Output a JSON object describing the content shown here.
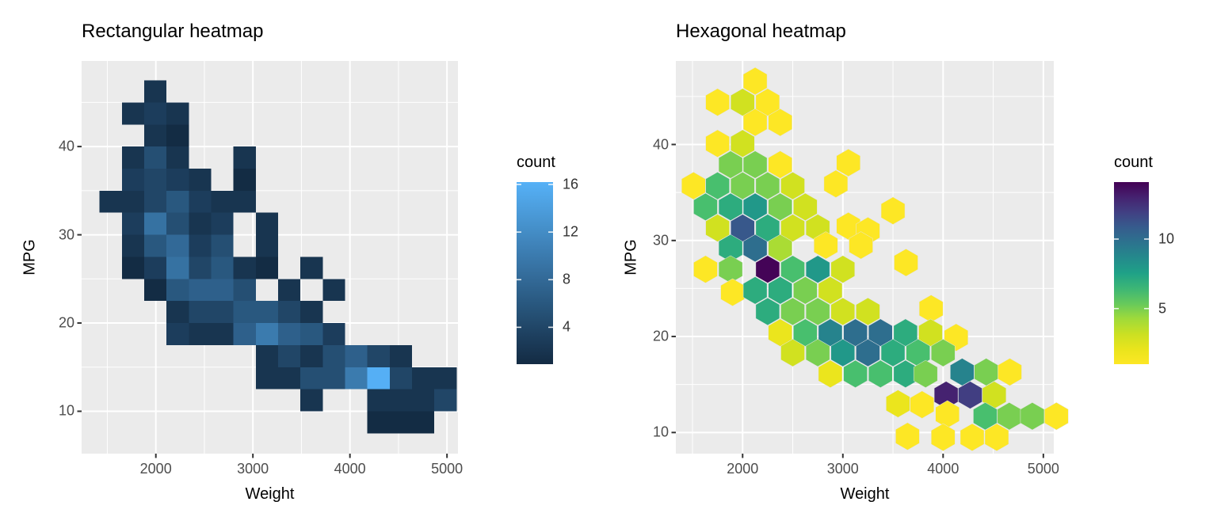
{
  "page": {
    "background": "#FFFFFF",
    "panel_background": "#EBEBEB",
    "gridline_color": "#FFFFFF",
    "tick_label_color": "#4D4D4D",
    "text_color": "#000000"
  },
  "charts": [
    {
      "id": "rect-heatmap",
      "title": "Rectangular heatmap",
      "xlabel": "Weight",
      "ylabel": "MPG",
      "x_ticks": [
        2000,
        3000,
        4000,
        5000
      ],
      "x_minor_ticks": [
        1500,
        2500,
        3500,
        4500
      ],
      "y_ticks": [
        10,
        20,
        30,
        40
      ],
      "y_minor_ticks": [
        15,
        25,
        35,
        45
      ],
      "x_domain": [
        1235,
        5113
      ],
      "y_domain": [
        5.2,
        49.7
      ],
      "legend": {
        "title": "count",
        "ticks": [
          16,
          12,
          8,
          4
        ],
        "domain": [
          0.9,
          16.2
        ],
        "low_color": "#132B43",
        "high_color": "#56B1F7"
      },
      "chart_data": {
        "type": "heatmap",
        "note": "2D binned counts of MPG vs Weight; bin = 230 lb x 2.5 MPG; cells = [weight_center, mpg_center, count]",
        "bin_width": 230,
        "bin_height": 2.5,
        "cells": [
          [
            1995,
            46.25,
            2
          ],
          [
            1765,
            43.75,
            2
          ],
          [
            1995,
            43.75,
            3
          ],
          [
            2225,
            43.75,
            2
          ],
          [
            1995,
            41.25,
            2
          ],
          [
            2225,
            41.25,
            1
          ],
          [
            1765,
            38.75,
            2
          ],
          [
            1995,
            38.75,
            5
          ],
          [
            2225,
            38.75,
            2
          ],
          [
            2915,
            38.75,
            2
          ],
          [
            1765,
            36.25,
            3
          ],
          [
            1995,
            36.25,
            4
          ],
          [
            2225,
            36.25,
            3
          ],
          [
            2455,
            36.25,
            2
          ],
          [
            2915,
            36.25,
            1
          ],
          [
            1535,
            33.75,
            2
          ],
          [
            1765,
            33.75,
            2
          ],
          [
            1995,
            33.75,
            4
          ],
          [
            2225,
            33.75,
            6
          ],
          [
            2455,
            33.75,
            3
          ],
          [
            2685,
            33.75,
            2
          ],
          [
            2915,
            33.75,
            2
          ],
          [
            1765,
            31.25,
            3
          ],
          [
            1995,
            31.25,
            9
          ],
          [
            2225,
            31.25,
            5
          ],
          [
            2455,
            31.25,
            2
          ],
          [
            2685,
            31.25,
            3
          ],
          [
            3145,
            31.25,
            2
          ],
          [
            1765,
            28.75,
            2
          ],
          [
            1995,
            28.75,
            6
          ],
          [
            2225,
            28.75,
            8
          ],
          [
            2455,
            28.75,
            3
          ],
          [
            2685,
            28.75,
            5
          ],
          [
            3145,
            28.75,
            2
          ],
          [
            1765,
            26.25,
            1
          ],
          [
            1995,
            26.25,
            3
          ],
          [
            2225,
            26.25,
            9
          ],
          [
            2455,
            26.25,
            4
          ],
          [
            2685,
            26.25,
            6
          ],
          [
            2915,
            26.25,
            2
          ],
          [
            3145,
            26.25,
            1
          ],
          [
            3605,
            26.25,
            2
          ],
          [
            1995,
            23.75,
            1
          ],
          [
            2225,
            23.75,
            6
          ],
          [
            2455,
            23.75,
            7
          ],
          [
            2685,
            23.75,
            7
          ],
          [
            2915,
            23.75,
            5
          ],
          [
            3375,
            23.75,
            2
          ],
          [
            3835,
            23.75,
            2
          ],
          [
            2225,
            21.25,
            2
          ],
          [
            2455,
            21.25,
            4
          ],
          [
            2685,
            21.25,
            4
          ],
          [
            2915,
            21.25,
            6
          ],
          [
            3145,
            21.25,
            6
          ],
          [
            3375,
            21.25,
            4
          ],
          [
            3605,
            21.25,
            2
          ],
          [
            2225,
            18.75,
            3
          ],
          [
            2455,
            18.75,
            2
          ],
          [
            2685,
            18.75,
            2
          ],
          [
            2915,
            18.75,
            7
          ],
          [
            3145,
            18.75,
            10
          ],
          [
            3375,
            18.75,
            7
          ],
          [
            3605,
            18.75,
            6
          ],
          [
            3835,
            18.75,
            3
          ],
          [
            3145,
            16.25,
            2
          ],
          [
            3375,
            16.25,
            4
          ],
          [
            3605,
            16.25,
            2
          ],
          [
            3835,
            16.25,
            5
          ],
          [
            4065,
            16.25,
            7
          ],
          [
            4295,
            16.25,
            4
          ],
          [
            4525,
            16.25,
            2
          ],
          [
            3145,
            13.75,
            2
          ],
          [
            3375,
            13.75,
            2
          ],
          [
            3605,
            13.75,
            5
          ],
          [
            3835,
            13.75,
            5
          ],
          [
            4065,
            13.75,
            10
          ],
          [
            4295,
            13.75,
            16
          ],
          [
            4525,
            13.75,
            4
          ],
          [
            4755,
            13.75,
            2
          ],
          [
            4985,
            13.75,
            2
          ],
          [
            3605,
            11.25,
            2
          ],
          [
            4295,
            11.25,
            2
          ],
          [
            4525,
            11.25,
            2
          ],
          [
            4755,
            11.25,
            2
          ],
          [
            4985,
            11.25,
            4
          ],
          [
            4295,
            8.75,
            1
          ],
          [
            4525,
            8.75,
            1
          ],
          [
            4755,
            8.75,
            1
          ]
        ]
      }
    },
    {
      "id": "hex-heatmap",
      "title": "Hexagonal heatmap",
      "xlabel": "Weight",
      "ylabel": "MPG",
      "x_ticks": [
        2000,
        3000,
        4000,
        5000
      ],
      "x_minor_ticks": [
        1500,
        2500,
        3500,
        4500
      ],
      "y_ticks": [
        10,
        20,
        30,
        40
      ],
      "y_minor_ticks": [
        15,
        25,
        35,
        45
      ],
      "x_domain": [
        1334,
        5104
      ],
      "y_domain": [
        7.8,
        48.7
      ],
      "legend": {
        "title": "count",
        "ticks": [
          10,
          5
        ],
        "domain": [
          1,
          14.1
        ],
        "palette": [
          "#440154",
          "#46327E",
          "#365C8D",
          "#277F8E",
          "#1FA187",
          "#4AC16D",
          "#9FDA3A",
          "#DFE318",
          "#FDE725"
        ],
        "high_is_dark": true
      },
      "chart_data": {
        "type": "hexbin",
        "note": "hex-binned counts of MPG vs Weight; cells = [weight_center, mpg_center, count]; yellow=1 .. dark purple=max",
        "hex_width": 237,
        "cells": [
          [
            2125,
            46.6,
            1
          ],
          [
            1750,
            44.4,
            1
          ],
          [
            2000,
            44.4,
            3
          ],
          [
            2250,
            44.4,
            1
          ],
          [
            2125,
            42.3,
            1
          ],
          [
            2375,
            42.3,
            1
          ],
          [
            1750,
            40.1,
            1
          ],
          [
            2000,
            40.1,
            3
          ],
          [
            1880,
            37.9,
            5
          ],
          [
            2125,
            37.9,
            5
          ],
          [
            2375,
            37.9,
            1
          ],
          [
            3055,
            38.1,
            1
          ],
          [
            1510,
            35.7,
            1
          ],
          [
            1750,
            35.7,
            6
          ],
          [
            2000,
            35.7,
            5
          ],
          [
            2250,
            35.7,
            5
          ],
          [
            2500,
            35.7,
            3
          ],
          [
            2930,
            35.9,
            1
          ],
          [
            1630,
            33.5,
            6
          ],
          [
            1880,
            33.5,
            7
          ],
          [
            2125,
            33.5,
            8
          ],
          [
            2375,
            33.5,
            5
          ],
          [
            2625,
            33.5,
            3
          ],
          [
            3500,
            33.1,
            1
          ],
          [
            1750,
            31.3,
            3
          ],
          [
            2000,
            31.3,
            11
          ],
          [
            2250,
            31.3,
            7
          ],
          [
            2500,
            31.3,
            3
          ],
          [
            2750,
            31.3,
            3
          ],
          [
            3055,
            31.5,
            1
          ],
          [
            3250,
            31.0,
            1
          ],
          [
            1880,
            29.2,
            7
          ],
          [
            2125,
            29.2,
            10
          ],
          [
            2375,
            29.2,
            4
          ],
          [
            2830,
            29.5,
            1
          ],
          [
            3180,
            29.5,
            1
          ],
          [
            1630,
            27.0,
            1
          ],
          [
            1880,
            27.0,
            5
          ],
          [
            2250,
            27.0,
            14
          ],
          [
            2500,
            27.0,
            6
          ],
          [
            2750,
            27.0,
            8
          ],
          [
            3000,
            27.0,
            3
          ],
          [
            3630,
            27.7,
            1
          ],
          [
            1900,
            24.6,
            1
          ],
          [
            2125,
            24.8,
            7
          ],
          [
            2375,
            24.8,
            7
          ],
          [
            2625,
            24.8,
            5
          ],
          [
            2875,
            24.8,
            3
          ],
          [
            2250,
            22.6,
            7
          ],
          [
            2500,
            22.6,
            5
          ],
          [
            2750,
            22.6,
            5
          ],
          [
            3000,
            22.6,
            3
          ],
          [
            3250,
            22.6,
            3
          ],
          [
            3880,
            22.9,
            1
          ],
          [
            2375,
            20.4,
            2
          ],
          [
            2625,
            20.4,
            6
          ],
          [
            2875,
            20.4,
            9
          ],
          [
            3125,
            20.4,
            10
          ],
          [
            3375,
            20.4,
            10
          ],
          [
            3625,
            20.4,
            7
          ],
          [
            3875,
            20.4,
            3
          ],
          [
            4130,
            19.9,
            1
          ],
          [
            2500,
            18.3,
            3
          ],
          [
            2750,
            18.3,
            5
          ],
          [
            3000,
            18.3,
            8
          ],
          [
            3250,
            18.3,
            10
          ],
          [
            3500,
            18.3,
            7
          ],
          [
            3750,
            18.3,
            6
          ],
          [
            4000,
            18.3,
            5
          ],
          [
            2875,
            16.1,
            2
          ],
          [
            3125,
            16.1,
            6
          ],
          [
            3375,
            16.1,
            6
          ],
          [
            3625,
            16.1,
            7
          ],
          [
            3825,
            16.1,
            5
          ],
          [
            4190,
            16.3,
            9
          ],
          [
            4430,
            16.3,
            5
          ],
          [
            4665,
            16.3,
            1
          ],
          [
            3550,
            13.0,
            2
          ],
          [
            3790,
            12.9,
            1
          ],
          [
            4030,
            13.9,
            13
          ],
          [
            4270,
            13.9,
            12
          ],
          [
            4510,
            13.9,
            3
          ],
          [
            4043,
            11.9,
            1
          ],
          [
            4420,
            11.7,
            6
          ],
          [
            4660,
            11.7,
            5
          ],
          [
            4890,
            11.7,
            5
          ],
          [
            5130,
            11.7,
            1
          ],
          [
            3645,
            9.6,
            1
          ],
          [
            4000,
            9.5,
            1
          ],
          [
            4290,
            9.5,
            1
          ],
          [
            4535,
            9.5,
            1
          ]
        ]
      }
    }
  ]
}
